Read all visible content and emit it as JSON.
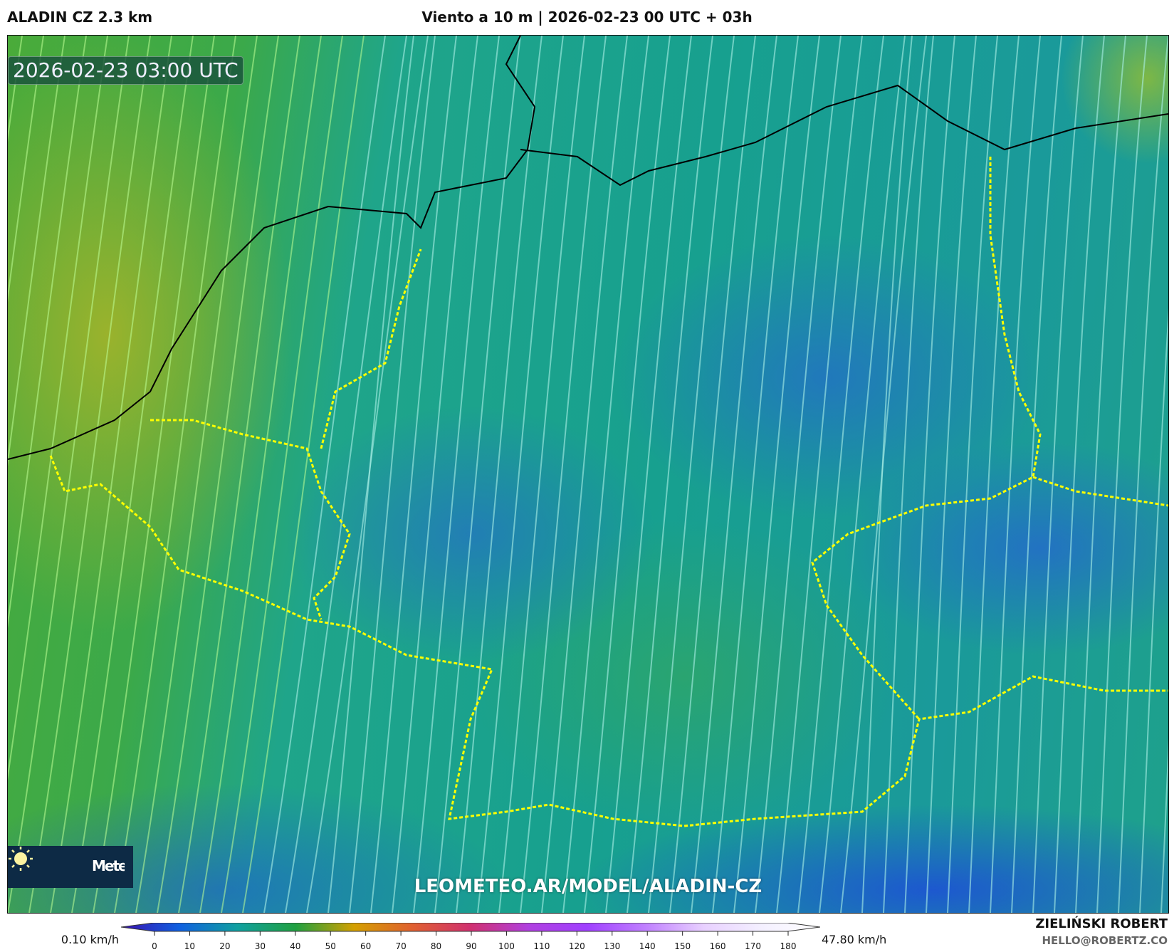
{
  "header": {
    "model": "ALADIN CZ 2.3 km",
    "title": "Viento a 10 m | 2026-02-23 00 UTC + 03h"
  },
  "map": {
    "valid_time": "2026-02-23 03:00 UTC",
    "watermark": "LEOMETEO.AR/MODEL/ALADIN-CZ",
    "logo": {
      "icon": "sun-icon",
      "text": "Meteo"
    }
  },
  "colorbar": {
    "min_label": "0.10 km/h",
    "max_label": "47.80 km/h",
    "ticks": [
      "0",
      "10",
      "20",
      "30",
      "40",
      "50",
      "60",
      "70",
      "80",
      "90",
      "100",
      "110",
      "120",
      "130",
      "140",
      "150",
      "160",
      "170",
      "180"
    ],
    "colors": [
      "#3a10b0",
      "#1060e0",
      "#10a0a0",
      "#20a040",
      "#d4a000",
      "#e06030",
      "#d03070",
      "#b040e0",
      "#a040ff",
      "#c080ff",
      "#e8d0ff",
      "#f4f0ff",
      "#ffffff"
    ]
  },
  "credits": {
    "name": "ZIELIŃSKI ROBERT",
    "email": "HELLO@ROBERTZ.CO"
  }
}
